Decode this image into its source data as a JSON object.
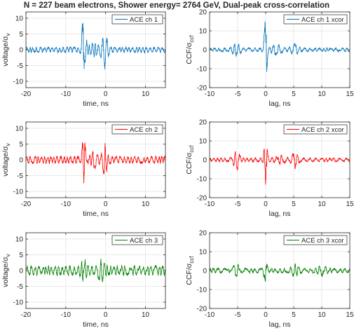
{
  "figure": {
    "title": "N = 227 beam electrons, Shower energy= 2764 GeV, Dual-peak cross-correlation"
  },
  "chart_data": [
    {
      "type": "line",
      "panel": "voltage-ch1",
      "ylabel_main": "voltage/",
      "ylabel_greek": "σ",
      "ylabel_sub": "v",
      "xlabel": "time, ns",
      "xlim": [
        -20,
        15
      ],
      "ylim": [
        -12,
        12
      ],
      "xticks": [
        -20,
        -10,
        0,
        10
      ],
      "yticks": [
        -10,
        -5,
        0,
        5,
        10
      ],
      "grid": true,
      "legend": "top-right",
      "series": [
        {
          "name": "ACE ch 1",
          "color": "#0072BD",
          "noise_amplitude": 0.7,
          "freq": 1.1,
          "peaks": [
            {
              "x": -5.7,
              "amp": 9.5,
              "width": 0.35
            },
            {
              "x": -5.2,
              "amp": 4.0,
              "width": 0.6
            },
            {
              "x": -0.3,
              "amp": 5.0,
              "width": 0.9
            },
            {
              "x": -3.0,
              "amp": 2.0,
              "width": 1.0
            }
          ]
        }
      ]
    },
    {
      "type": "line",
      "panel": "xcor-ch1",
      "ylabel_main": "CCF/",
      "ylabel_greek": "σ",
      "ylabel_sub": "ccf",
      "xlabel": "lag, ns",
      "xlim": [
        -10,
        15
      ],
      "ylim": [
        -20,
        20
      ],
      "xticks": [
        -10,
        -5,
        0,
        5,
        10,
        15
      ],
      "yticks": [
        -20,
        -10,
        0,
        10,
        20
      ],
      "grid": true,
      "legend": "top-right",
      "series": [
        {
          "name": "ACE ch 1 xcor",
          "color": "#0072BD",
          "noise_amplitude": 0.8,
          "freq": 1.1,
          "peaks": [
            {
              "x": 0.0,
              "amp": 18.0,
              "width": 0.3
            },
            {
              "x": -5.2,
              "amp": 3.5,
              "width": 0.7
            },
            {
              "x": 5.2,
              "amp": 3.0,
              "width": 0.7
            },
            {
              "x": 2.0,
              "amp": 2.0,
              "width": 1.0
            }
          ]
        }
      ]
    },
    {
      "type": "line",
      "panel": "voltage-ch2",
      "ylabel_main": "voltage/",
      "ylabel_greek": "σ",
      "ylabel_sub": "v",
      "xlabel": "time, ns",
      "xlim": [
        -20,
        15
      ],
      "ylim": [
        -12,
        12
      ],
      "xticks": [
        -20,
        -10,
        0,
        10
      ],
      "yticks": [
        -10,
        -5,
        0,
        5,
        10
      ],
      "grid": true,
      "legend": "top-right",
      "series": [
        {
          "name": "ACE ch 2",
          "color": "#FF0000",
          "noise_amplitude": 0.9,
          "freq": 1.1,
          "peaks": [
            {
              "x": -5.5,
              "amp": 9.0,
              "width": 0.4
            },
            {
              "x": -0.2,
              "amp": 4.5,
              "width": 0.7
            },
            {
              "x": -3.0,
              "amp": 2.0,
              "width": 1.0
            }
          ]
        }
      ]
    },
    {
      "type": "line",
      "panel": "xcor-ch2",
      "ylabel_main": "CCF/",
      "ylabel_greek": "σ",
      "ylabel_sub": "ccf",
      "xlabel": "lag, ns",
      "xlim": [
        -10,
        15
      ],
      "ylim": [
        -20,
        20
      ],
      "xticks": [
        -10,
        -5,
        0,
        5,
        10,
        15
      ],
      "yticks": [
        -20,
        -10,
        0,
        10,
        20
      ],
      "grid": true,
      "legend": "top-right",
      "series": [
        {
          "name": "ACE ch 2 xcor",
          "color": "#FF0000",
          "noise_amplitude": 0.8,
          "freq": 1.1,
          "peaks": [
            {
              "x": 0.0,
              "amp": 14.5,
              "width": 0.3
            },
            {
              "x": -5.2,
              "amp": 5.0,
              "width": 0.6
            },
            {
              "x": 5.2,
              "amp": 4.0,
              "width": 0.6
            },
            {
              "x": 2.5,
              "amp": 2.0,
              "width": 1.0
            }
          ]
        }
      ]
    },
    {
      "type": "line",
      "panel": "voltage-ch3",
      "ylabel_main": "voltage/",
      "ylabel_greek": "σ",
      "ylabel_sub": "v",
      "xlabel": "time, ns",
      "xlim": [
        -20,
        15
      ],
      "ylim": [
        -12,
        12
      ],
      "xticks": [
        -20,
        -10,
        0,
        10
      ],
      "yticks": [
        -10,
        -5,
        0,
        5,
        10
      ],
      "grid": true,
      "legend": "top-right",
      "series": [
        {
          "name": "ACE ch 3",
          "color": "#008000",
          "noise_amplitude": 1.2,
          "freq": 1.1,
          "peaks": [
            {
              "x": -5.5,
              "amp": 2.5,
              "width": 0.8
            },
            {
              "x": -1.0,
              "amp": 2.5,
              "width": 1.0
            }
          ]
        }
      ]
    },
    {
      "type": "line",
      "panel": "xcor-ch3",
      "ylabel_main": "CCF/",
      "ylabel_greek": "σ",
      "ylabel_sub": "ccf",
      "xlabel": "lag, ns",
      "xlim": [
        -10,
        15
      ],
      "ylim": [
        -20,
        20
      ],
      "xticks": [
        -10,
        -5,
        0,
        5,
        10,
        15
      ],
      "yticks": [
        -20,
        -10,
        0,
        10,
        20
      ],
      "grid": true,
      "legend": "top-right",
      "series": [
        {
          "name": "ACE ch 3 xcor",
          "color": "#008000",
          "noise_amplitude": 1.0,
          "freq": 1.1,
          "peaks": [
            {
              "x": 0.0,
              "amp": 8.5,
              "width": 0.3
            },
            {
              "x": -5.2,
              "amp": 2.5,
              "width": 0.7
            },
            {
              "x": 5.2,
              "amp": 2.5,
              "width": 0.7
            },
            {
              "x": 10.0,
              "amp": 2.0,
              "width": 1.0
            }
          ]
        }
      ]
    }
  ]
}
